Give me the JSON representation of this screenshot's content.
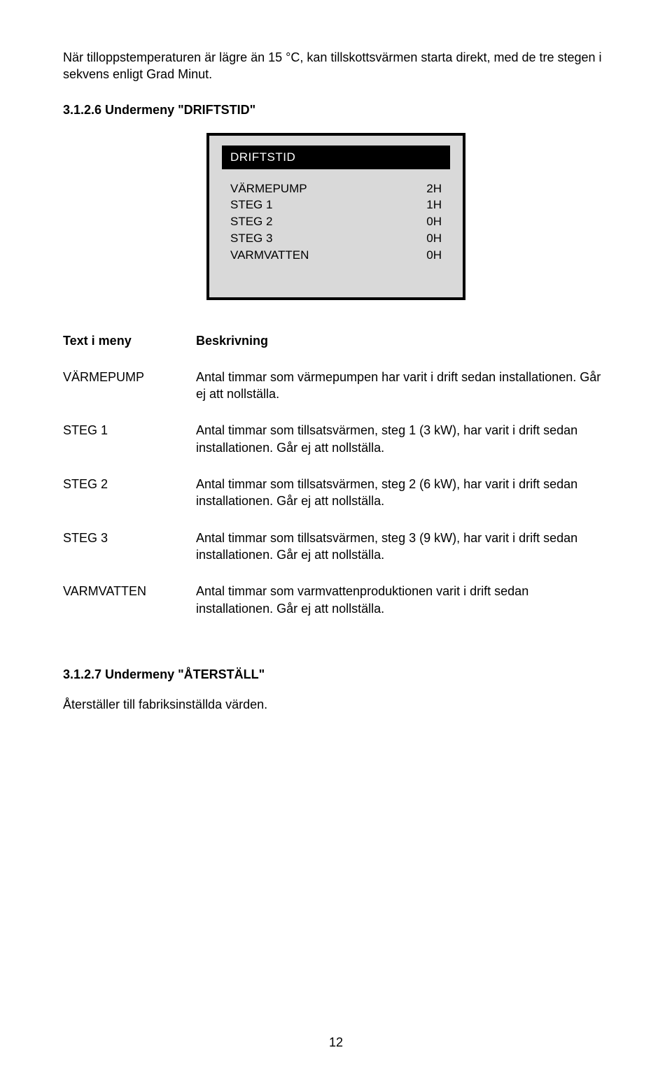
{
  "intro": "När tilloppstemperaturen är lägre än 15 °C, kan tillskottsvärmen starta direkt, med de tre stegen i sekvens enligt Grad Minut.",
  "section1": {
    "heading": "3.1.2.6 Undermeny \"DRIFTSTID\"",
    "panel_title": "DRIFTSTID",
    "rows": [
      {
        "label": "VÄRMEPUMP",
        "value": "2H"
      },
      {
        "label": "STEG 1",
        "value": "1H"
      },
      {
        "label": "STEG 2",
        "value": "0H"
      },
      {
        "label": "STEG 3",
        "value": "0H"
      },
      {
        "label": "VARMVATTEN",
        "value": "0H"
      }
    ]
  },
  "desc": {
    "header_left": "Text i meny",
    "header_right": "Beskrivning",
    "items": [
      {
        "term": "VÄRMEPUMP",
        "text": "Antal timmar som värmepumpen har varit i drift sedan installationen. Går ej att nollställa."
      },
      {
        "term": "STEG 1",
        "text": "Antal timmar som tillsatsvärmen, steg 1 (3 kW), har varit i drift sedan installationen. Går ej att nollställa."
      },
      {
        "term": "STEG 2",
        "text": "Antal timmar som tillsatsvärmen, steg 2 (6 kW), har varit i drift sedan installationen. Går ej att nollställa."
      },
      {
        "term": "STEG 3",
        "text": "Antal timmar som tillsatsvärmen, steg 3 (9 kW), har varit i drift sedan installationen. Går ej att nollställa."
      },
      {
        "term": "VARMVATTEN",
        "text": "Antal timmar som varmvattenproduktionen varit i drift sedan installationen. Går ej att nollställa."
      }
    ]
  },
  "section2": {
    "heading": "3.1.2.7 Undermeny \"ÅTERSTÄLL\"",
    "text": "Återställer till fabriksinställda värden."
  },
  "page_number": "12"
}
